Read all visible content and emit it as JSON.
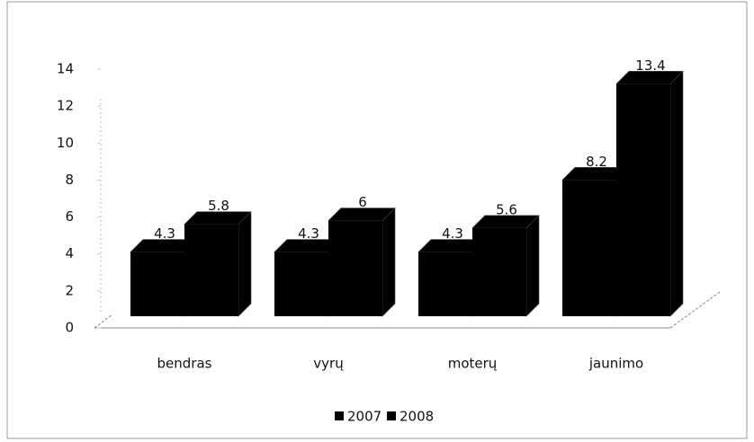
{
  "chart_data": {
    "type": "bar3d",
    "categories": [
      "bendras",
      "vyrų",
      "moterų",
      "jaunimo"
    ],
    "series": [
      {
        "name": "2007",
        "color": "#000000",
        "values": [
          4.3,
          4.3,
          4.3,
          8.2
        ]
      },
      {
        "name": "2008",
        "color": "#000000",
        "values": [
          5.8,
          6,
          5.6,
          13.4
        ]
      }
    ],
    "ylim": [
      0,
      14
    ],
    "yticks": [
      0,
      2,
      4,
      6,
      8,
      10,
      12,
      14
    ],
    "legend": "bottom"
  }
}
